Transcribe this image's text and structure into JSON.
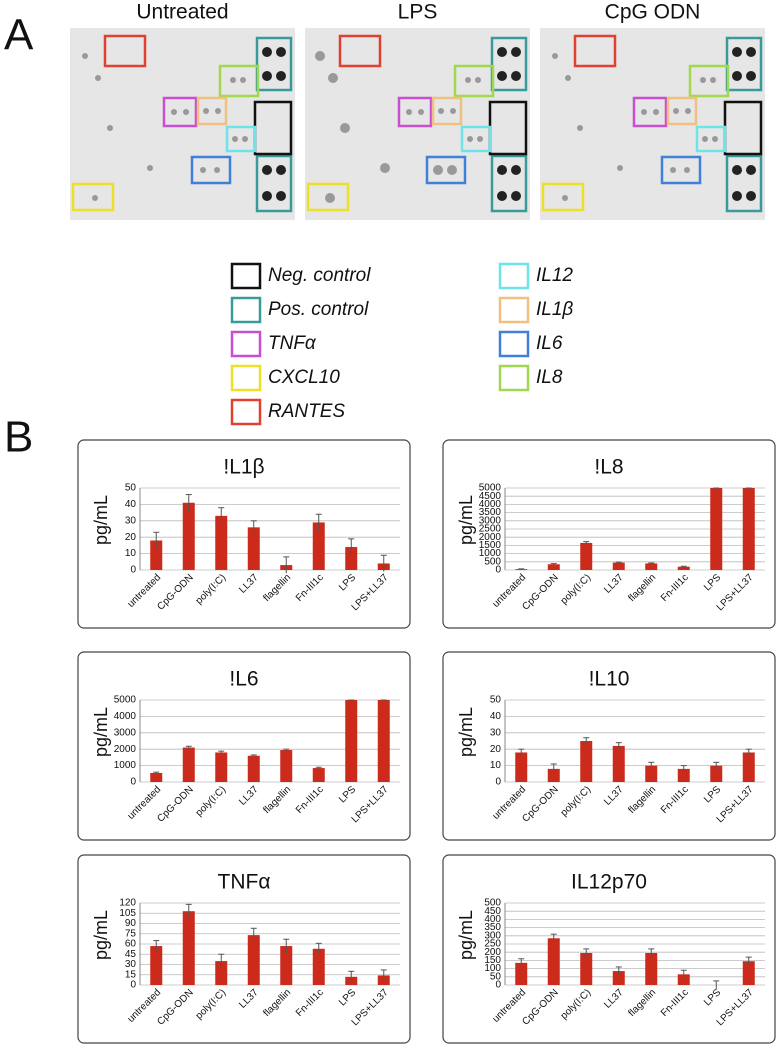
{
  "panel_labels": [
    "A",
    "B"
  ],
  "blots": [
    "Untreated",
    "LPS",
    "CpG ODN"
  ],
  "legend": [
    {
      "label": "Neg. control",
      "color": "#111111"
    },
    {
      "label": "Pos. control",
      "color": "#3a9a9a"
    },
    {
      "label": "TNFα",
      "color": "#c94fd0"
    },
    {
      "label": "CXCL10",
      "color": "#ece028"
    },
    {
      "label": "RANTES",
      "color": "#e04030"
    },
    {
      "label": "IL12",
      "color": "#6fe3ea"
    },
    {
      "label": "IL1β",
      "color": "#f0c080"
    },
    {
      "label": "IL6",
      "color": "#4080d8"
    },
    {
      "label": "IL8",
      "color": "#a0d850"
    }
  ],
  "chart_data": [
    {
      "type": "bar",
      "title": "!L1β",
      "y_label": "pg/mL",
      "color": "#cc2a1a",
      "categories": [
        "untreated",
        "CpG-ODN",
        "poly(I:C)",
        "LL37",
        "flagellin",
        "Fn-III1c",
        "LPS",
        "LPS+LL37"
      ],
      "values": [
        18,
        41,
        33,
        26,
        3,
        29,
        14,
        4
      ],
      "errors": [
        5,
        5,
        5,
        4,
        5,
        5,
        5,
        5
      ],
      "ylim": [
        0,
        50
      ],
      "yticks": [
        0,
        10,
        20,
        30,
        40,
        50
      ],
      "grid": true
    },
    {
      "type": "bar",
      "title": "!L8",
      "y_label": "pg/mL",
      "color": "#cc2a1a",
      "categories": [
        "untreated",
        "CpG-ODN",
        "poly(I:C)",
        "LL37",
        "flagellin",
        "Fn-III1c",
        "LPS",
        "LPS+LL37"
      ],
      "values": [
        50,
        350,
        1650,
        450,
        400,
        200,
        5000,
        5000
      ],
      "errors": [
        20,
        40,
        80,
        30,
        30,
        30,
        0,
        0
      ],
      "ylim": [
        0,
        5000
      ],
      "yticks": [
        0,
        500,
        1000,
        1500,
        2000,
        2500,
        3000,
        3500,
        4000,
        4500,
        5000
      ],
      "grid": true
    },
    {
      "type": "bar",
      "title": "!L6",
      "y_label": "pg/mL",
      "color": "#cc2a1a",
      "categories": [
        "untreated",
        "CpG-ODN",
        "poly(I:C)",
        "LL37",
        "flagellin",
        "Fn-III1c",
        "LPS",
        "LPS+LL37"
      ],
      "values": [
        550,
        2100,
        1800,
        1600,
        1950,
        850,
        5000,
        5000
      ],
      "errors": [
        50,
        80,
        80,
        50,
        50,
        50,
        0,
        0
      ],
      "ylim": [
        0,
        5000
      ],
      "yticks": [
        0,
        1000,
        2000,
        3000,
        4000,
        5000
      ],
      "grid": true
    },
    {
      "type": "bar",
      "title": "!L10",
      "y_label": "pg/mL",
      "color": "#cc2a1a",
      "categories": [
        "untreated",
        "CpG-ODN",
        "poly(I:C)",
        "LL37",
        "flagellin",
        "Fn-III1c",
        "LPS",
        "LPS+LL37"
      ],
      "values": [
        18,
        8,
        25,
        22,
        10,
        8,
        10,
        18
      ],
      "errors": [
        2,
        3,
        2,
        2,
        2,
        2,
        2,
        2
      ],
      "ylim": [
        0,
        50
      ],
      "yticks": [
        0,
        10,
        20,
        30,
        40,
        50
      ],
      "grid": true
    },
    {
      "type": "bar",
      "title": "TNFα",
      "y_label": "pg/mL",
      "color": "#cc2a1a",
      "categories": [
        "untreated",
        "CpG-ODN",
        "poly(I:C)",
        "LL37",
        "flagellin",
        "Fn-III1c",
        "LPS",
        "LPS+LL37"
      ],
      "values": [
        57,
        108,
        35,
        73,
        57,
        53,
        12,
        14
      ],
      "errors": [
        8,
        10,
        10,
        10,
        10,
        8,
        8,
        8
      ],
      "ylim": [
        0,
        120
      ],
      "yticks": [
        0,
        15,
        30,
        45,
        60,
        75,
        90,
        105,
        120
      ],
      "grid": true
    },
    {
      "type": "bar",
      "title": "IL12p70",
      "y_label": "pg/mL",
      "color": "#cc2a1a",
      "categories": [
        "untreated",
        "CpG-ODN",
        "poly(I:C)",
        "LL37",
        "flagellin",
        "Fn-III1c",
        "LPS",
        "LPS+LL37"
      ],
      "values": [
        135,
        285,
        195,
        85,
        195,
        65,
        0,
        145
      ],
      "errors": [
        25,
        25,
        25,
        25,
        25,
        25,
        25,
        25
      ],
      "ylim": [
        0,
        500
      ],
      "yticks": [
        0,
        50,
        100,
        150,
        200,
        250,
        300,
        350,
        400,
        450,
        500
      ],
      "grid": true
    }
  ]
}
